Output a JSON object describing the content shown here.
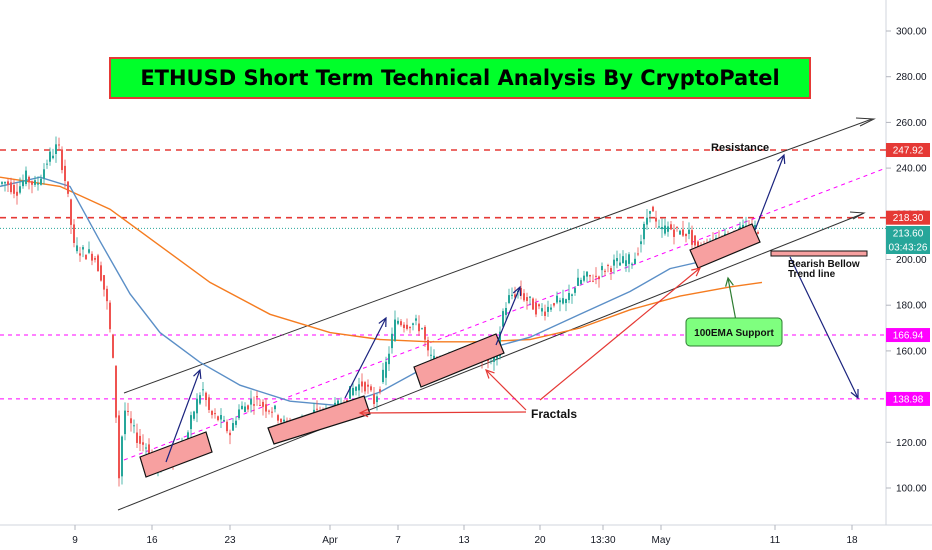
{
  "title": "ETHUSD Short Term Technical Analysis By CryptoPatel",
  "colors": {
    "title_bg": "#00ff2a",
    "up": "#26a69a",
    "down": "#ef5350",
    "ema_fast": "#5b8fc7",
    "ema_slow": "#f57c20",
    "resistance": "#e53935",
    "magenta": "#ff00ff",
    "channel": "#333333",
    "arrow": "#1a237e",
    "green_label": "#7fff7f",
    "box": "#f7a0a0"
  },
  "price_labels": [
    {
      "text": "247.92",
      "value": 247.92,
      "bg": "#e53935"
    },
    {
      "text": "218.30",
      "value": 218.3,
      "bg": "#e53935"
    },
    {
      "text": "213.60",
      "value": 213.6,
      "bg": "#26a69a"
    },
    {
      "text": "03:43:26",
      "value": 209.2,
      "bg": "#26a69a"
    },
    {
      "text": "166.94",
      "value": 166.94,
      "bg": "#ff00ff"
    },
    {
      "text": "138.98",
      "value": 138.98,
      "bg": "#ff00ff"
    }
  ],
  "annotations": {
    "resistance": "Resistance",
    "bearish_line1": "Bearish Bellow",
    "bearish_line2": "Trend line",
    "ema_support": "100EMA Support",
    "fractals": "Fractals"
  },
  "chart_data": {
    "type": "candlestick",
    "title": "ETHUSD Short Term Technical Analysis By CryptoPatel",
    "ylim": [
      85,
      320
    ],
    "yticks": [
      100,
      120,
      140,
      160,
      180,
      200,
      220,
      240,
      260,
      280,
      300
    ],
    "ytick_labels": [
      "100.00",
      "120.00",
      "140.00",
      "160.00",
      "180.00",
      "200.00",
      "220.00",
      "240.00",
      "260.00",
      "280.00",
      "300.00"
    ],
    "xtick_labels": [
      "9",
      "16",
      "23",
      "Apr",
      "7",
      "13",
      "20",
      "13:30",
      "May",
      "11",
      "18"
    ],
    "price_path": [
      {
        "x": 0,
        "p": 233
      },
      {
        "x": 8,
        "p": 234
      },
      {
        "x": 18,
        "p": 230
      },
      {
        "x": 28,
        "p": 236
      },
      {
        "x": 38,
        "p": 232
      },
      {
        "x": 50,
        "p": 244
      },
      {
        "x": 60,
        "p": 250
      },
      {
        "x": 66,
        "p": 238
      },
      {
        "x": 70,
        "p": 226
      },
      {
        "x": 76,
        "p": 205
      },
      {
        "x": 86,
        "p": 203
      },
      {
        "x": 96,
        "p": 202
      },
      {
        "x": 104,
        "p": 192
      },
      {
        "x": 110,
        "p": 178
      },
      {
        "x": 116,
        "p": 150
      },
      {
        "x": 121,
        "p": 105
      },
      {
        "x": 126,
        "p": 135
      },
      {
        "x": 134,
        "p": 126
      },
      {
        "x": 142,
        "p": 120
      },
      {
        "x": 150,
        "p": 118
      },
      {
        "x": 158,
        "p": 108
      },
      {
        "x": 166,
        "p": 112
      },
      {
        "x": 176,
        "p": 114
      },
      {
        "x": 186,
        "p": 118
      },
      {
        "x": 196,
        "p": 134
      },
      {
        "x": 204,
        "p": 144
      },
      {
        "x": 212,
        "p": 132
      },
      {
        "x": 222,
        "p": 130
      },
      {
        "x": 232,
        "p": 124
      },
      {
        "x": 240,
        "p": 134
      },
      {
        "x": 248,
        "p": 136
      },
      {
        "x": 256,
        "p": 139
      },
      {
        "x": 266,
        "p": 136
      },
      {
        "x": 276,
        "p": 134
      },
      {
        "x": 286,
        "p": 128
      },
      {
        "x": 296,
        "p": 127
      },
      {
        "x": 306,
        "p": 130
      },
      {
        "x": 316,
        "p": 133
      },
      {
        "x": 326,
        "p": 132
      },
      {
        "x": 336,
        "p": 134
      },
      {
        "x": 346,
        "p": 138
      },
      {
        "x": 356,
        "p": 144
      },
      {
        "x": 366,
        "p": 146
      },
      {
        "x": 376,
        "p": 138
      },
      {
        "x": 386,
        "p": 150
      },
      {
        "x": 392,
        "p": 162
      },
      {
        "x": 398,
        "p": 174
      },
      {
        "x": 406,
        "p": 172
      },
      {
        "x": 416,
        "p": 172
      },
      {
        "x": 424,
        "p": 170
      },
      {
        "x": 430,
        "p": 158
      },
      {
        "x": 440,
        "p": 154
      },
      {
        "x": 450,
        "p": 154
      },
      {
        "x": 460,
        "p": 157
      },
      {
        "x": 470,
        "p": 158
      },
      {
        "x": 480,
        "p": 158
      },
      {
        "x": 490,
        "p": 156
      },
      {
        "x": 498,
        "p": 156
      },
      {
        "x": 504,
        "p": 176
      },
      {
        "x": 512,
        "p": 184
      },
      {
        "x": 520,
        "p": 186
      },
      {
        "x": 530,
        "p": 182
      },
      {
        "x": 540,
        "p": 178
      },
      {
        "x": 548,
        "p": 178
      },
      {
        "x": 556,
        "p": 182
      },
      {
        "x": 566,
        "p": 180
      },
      {
        "x": 576,
        "p": 188
      },
      {
        "x": 586,
        "p": 192
      },
      {
        "x": 596,
        "p": 192
      },
      {
        "x": 606,
        "p": 196
      },
      {
        "x": 616,
        "p": 198
      },
      {
        "x": 626,
        "p": 199
      },
      {
        "x": 636,
        "p": 200
      },
      {
        "x": 644,
        "p": 210
      },
      {
        "x": 652,
        "p": 224
      },
      {
        "x": 660,
        "p": 212
      },
      {
        "x": 670,
        "p": 214
      },
      {
        "x": 680,
        "p": 212
      },
      {
        "x": 690,
        "p": 212
      },
      {
        "x": 700,
        "p": 204
      },
      {
        "x": 710,
        "p": 206
      },
      {
        "x": 720,
        "p": 210
      },
      {
        "x": 730,
        "p": 210
      },
      {
        "x": 740,
        "p": 212
      },
      {
        "x": 750,
        "p": 213
      },
      {
        "x": 758,
        "p": 213.6
      }
    ],
    "ema_fast": [
      {
        "x": 0,
        "p": 232
      },
      {
        "x": 40,
        "p": 236
      },
      {
        "x": 70,
        "p": 232
      },
      {
        "x": 100,
        "p": 208
      },
      {
        "x": 130,
        "p": 185
      },
      {
        "x": 160,
        "p": 168
      },
      {
        "x": 200,
        "p": 155
      },
      {
        "x": 240,
        "p": 145
      },
      {
        "x": 290,
        "p": 138
      },
      {
        "x": 340,
        "p": 136
      },
      {
        "x": 380,
        "p": 142
      },
      {
        "x": 430,
        "p": 154
      },
      {
        "x": 480,
        "p": 160
      },
      {
        "x": 530,
        "p": 166
      },
      {
        "x": 580,
        "p": 176
      },
      {
        "x": 630,
        "p": 186
      },
      {
        "x": 670,
        "p": 196
      },
      {
        "x": 710,
        "p": 200
      },
      {
        "x": 740,
        "p": 206
      }
    ],
    "ema_slow": [
      {
        "x": 0,
        "p": 236
      },
      {
        "x": 60,
        "p": 232
      },
      {
        "x": 110,
        "p": 222
      },
      {
        "x": 160,
        "p": 206
      },
      {
        "x": 210,
        "p": 190
      },
      {
        "x": 270,
        "p": 176
      },
      {
        "x": 330,
        "p": 168
      },
      {
        "x": 380,
        "p": 165
      },
      {
        "x": 430,
        "p": 164
      },
      {
        "x": 480,
        "p": 164
      },
      {
        "x": 530,
        "p": 165
      },
      {
        "x": 580,
        "p": 170
      },
      {
        "x": 630,
        "p": 178
      },
      {
        "x": 680,
        "p": 184
      },
      {
        "x": 730,
        "p": 188
      },
      {
        "x": 762,
        "p": 190
      }
    ],
    "levels": [
      {
        "name": "Resistance 247.92",
        "value": 247.92,
        "style": "dashed",
        "color": "#e53935"
      },
      {
        "name": "218.30",
        "value": 218.3,
        "style": "dashed",
        "color": "#e53935"
      },
      {
        "name": "166.94",
        "value": 166.94,
        "style": "dashed",
        "color": "#ff00ff"
      },
      {
        "name": "138.98",
        "value": 138.98,
        "style": "dashed",
        "color": "#ff00ff"
      }
    ]
  }
}
